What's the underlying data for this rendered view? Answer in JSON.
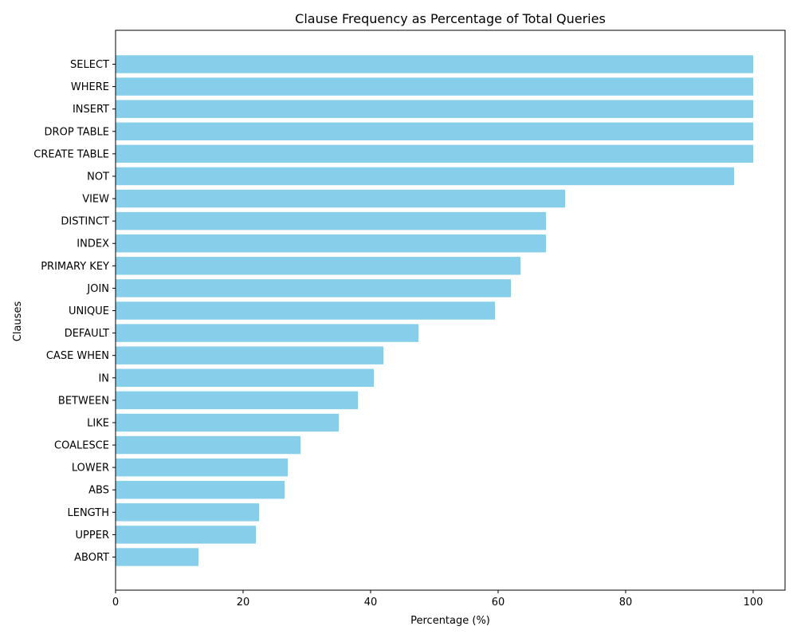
{
  "chart_data": {
    "type": "bar",
    "orientation": "horizontal",
    "title": "Clause Frequency as Percentage of Total Queries",
    "xlabel": "Percentage (%)",
    "ylabel": "Clauses",
    "xlim": [
      0,
      105
    ],
    "xticks": [
      0,
      20,
      40,
      60,
      80,
      100
    ],
    "grid": false,
    "bar_color": "#87ceeb",
    "categories": [
      "SELECT",
      "WHERE",
      "INSERT",
      "DROP TABLE",
      "CREATE TABLE",
      "NOT",
      "VIEW",
      "DISTINCT",
      "INDEX",
      "PRIMARY KEY",
      "JOIN",
      "UNIQUE",
      "DEFAULT",
      "CASE WHEN",
      "IN",
      "BETWEEN",
      "LIKE",
      "COALESCE",
      "LOWER",
      "ABS",
      "LENGTH",
      "UPPER",
      "ABORT"
    ],
    "values": [
      100,
      100,
      100,
      100,
      100,
      97,
      70.5,
      67.5,
      67.5,
      63.5,
      62,
      59.5,
      47.5,
      42,
      40.5,
      38,
      35,
      29,
      27,
      26.5,
      22.5,
      22,
      13
    ]
  }
}
